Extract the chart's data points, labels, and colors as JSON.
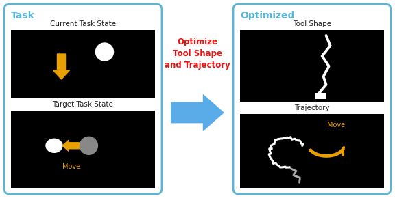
{
  "bg_color": "#ffffff",
  "task_box_color": "#5ab4d6",
  "optimized_box_color": "#5ab4d6",
  "task_label": "Task",
  "optimized_label": "Optimized",
  "current_state_label": "Current Task State",
  "target_state_label": "Target Task State",
  "tool_shape_label": "Tool Shape",
  "trajectory_label": "Trajectory",
  "optimize_text": "Optimize\nTool Shape\nand Trajectory",
  "optimize_color": "#ee1111",
  "arrow_color": "#5aace8",
  "gold_color": "#e8a000",
  "white_color": "#ffffff",
  "gray_color": "#888888",
  "black_color": "#000000",
  "text_color": "#222222"
}
